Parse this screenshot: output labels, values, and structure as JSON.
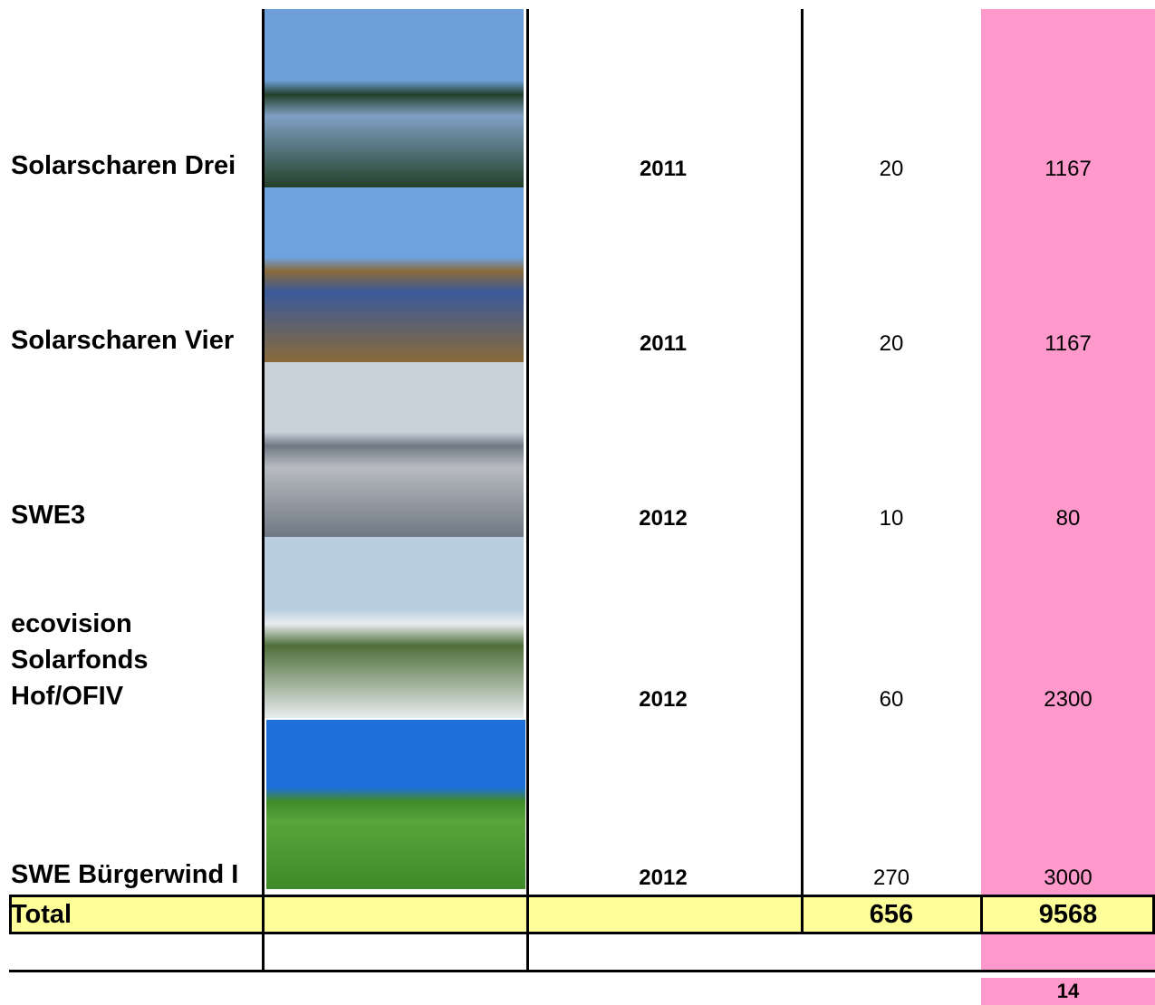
{
  "table": {
    "rows": [
      {
        "name": "Solarscharen Drei",
        "year": "2011",
        "count": 20,
        "value": 1167
      },
      {
        "name": "Solarscharen Vier",
        "year": "2011",
        "count": 20,
        "value": 1167
      },
      {
        "name": "SWE3",
        "year": "2012",
        "count": 10,
        "value": 80
      },
      {
        "name": "ecovision Solarfonds Hof/OFIV",
        "year": "2012",
        "count": 60,
        "value": 2300
      },
      {
        "name": "SWE Bürgerwind I",
        "year": "2012",
        "count": 270,
        "value": 3000
      }
    ],
    "total": {
      "label": "Total",
      "count": 656,
      "value": 9568
    },
    "footer": {
      "value": 14
    }
  }
}
